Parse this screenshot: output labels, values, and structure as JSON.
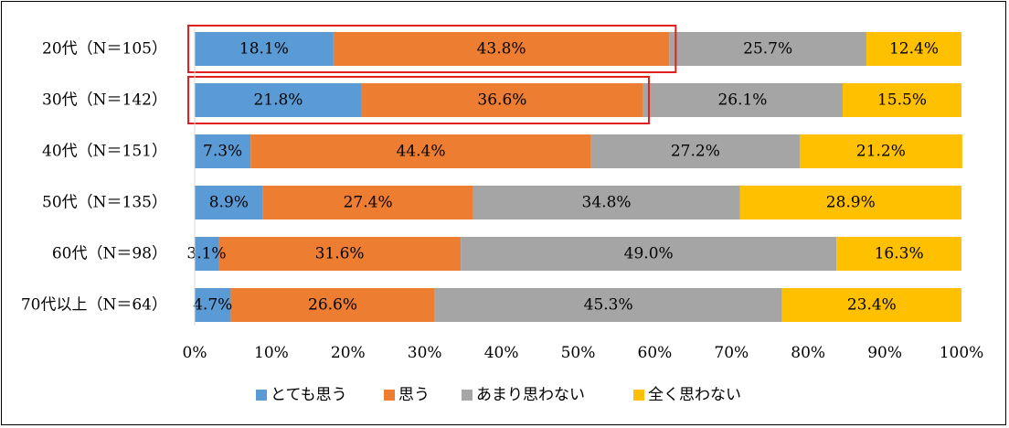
{
  "chart_data": {
    "type": "bar",
    "orientation": "horizontal",
    "stacked": "percent",
    "categories": [
      "20代（N＝105）",
      "30代（N＝142）",
      "40代（N＝151）",
      "50代（N＝135）",
      "60代（N＝98）",
      "70代以上（N＝64）"
    ],
    "series": [
      {
        "name": "とても思う",
        "color": "#5B9BD5",
        "values": [
          18.1,
          21.8,
          7.3,
          8.9,
          3.1,
          4.7
        ],
        "labels": [
          "18.1%",
          "21.8%",
          "7.3%",
          "8.9%",
          "3.1%",
          "4.7%"
        ]
      },
      {
        "name": "思う",
        "color": "#ED7D31",
        "values": [
          43.8,
          36.6,
          44.4,
          27.4,
          31.6,
          26.6
        ],
        "labels": [
          "43.8%",
          "36.6%",
          "44.4%",
          "27.4%",
          "31.6%",
          "26.6%"
        ]
      },
      {
        "name": "あまり思わない",
        "color": "#A5A5A5",
        "values": [
          25.7,
          26.1,
          27.2,
          34.8,
          49.0,
          45.3
        ],
        "labels": [
          "25.7%",
          "26.1%",
          "27.2%",
          "34.8%",
          "49.0%",
          "45.3%"
        ]
      },
      {
        "name": "全く思わない",
        "color": "#FFC000",
        "values": [
          12.4,
          15.5,
          21.2,
          28.9,
          16.3,
          23.4
        ],
        "labels": [
          "12.4%",
          "15.5%",
          "21.2%",
          "28.9%",
          "16.3%",
          "23.4%"
        ]
      }
    ],
    "xlim": [
      0,
      100
    ],
    "xticks": [
      "0%",
      "10%",
      "20%",
      "30%",
      "40%",
      "50%",
      "60%",
      "70%",
      "80%",
      "90%",
      "100%"
    ],
    "grid": false,
    "legend_position": "bottom",
    "highlight": {
      "color": "#E02020",
      "categories": [
        0,
        1
      ],
      "series": [
        0,
        1
      ]
    }
  }
}
